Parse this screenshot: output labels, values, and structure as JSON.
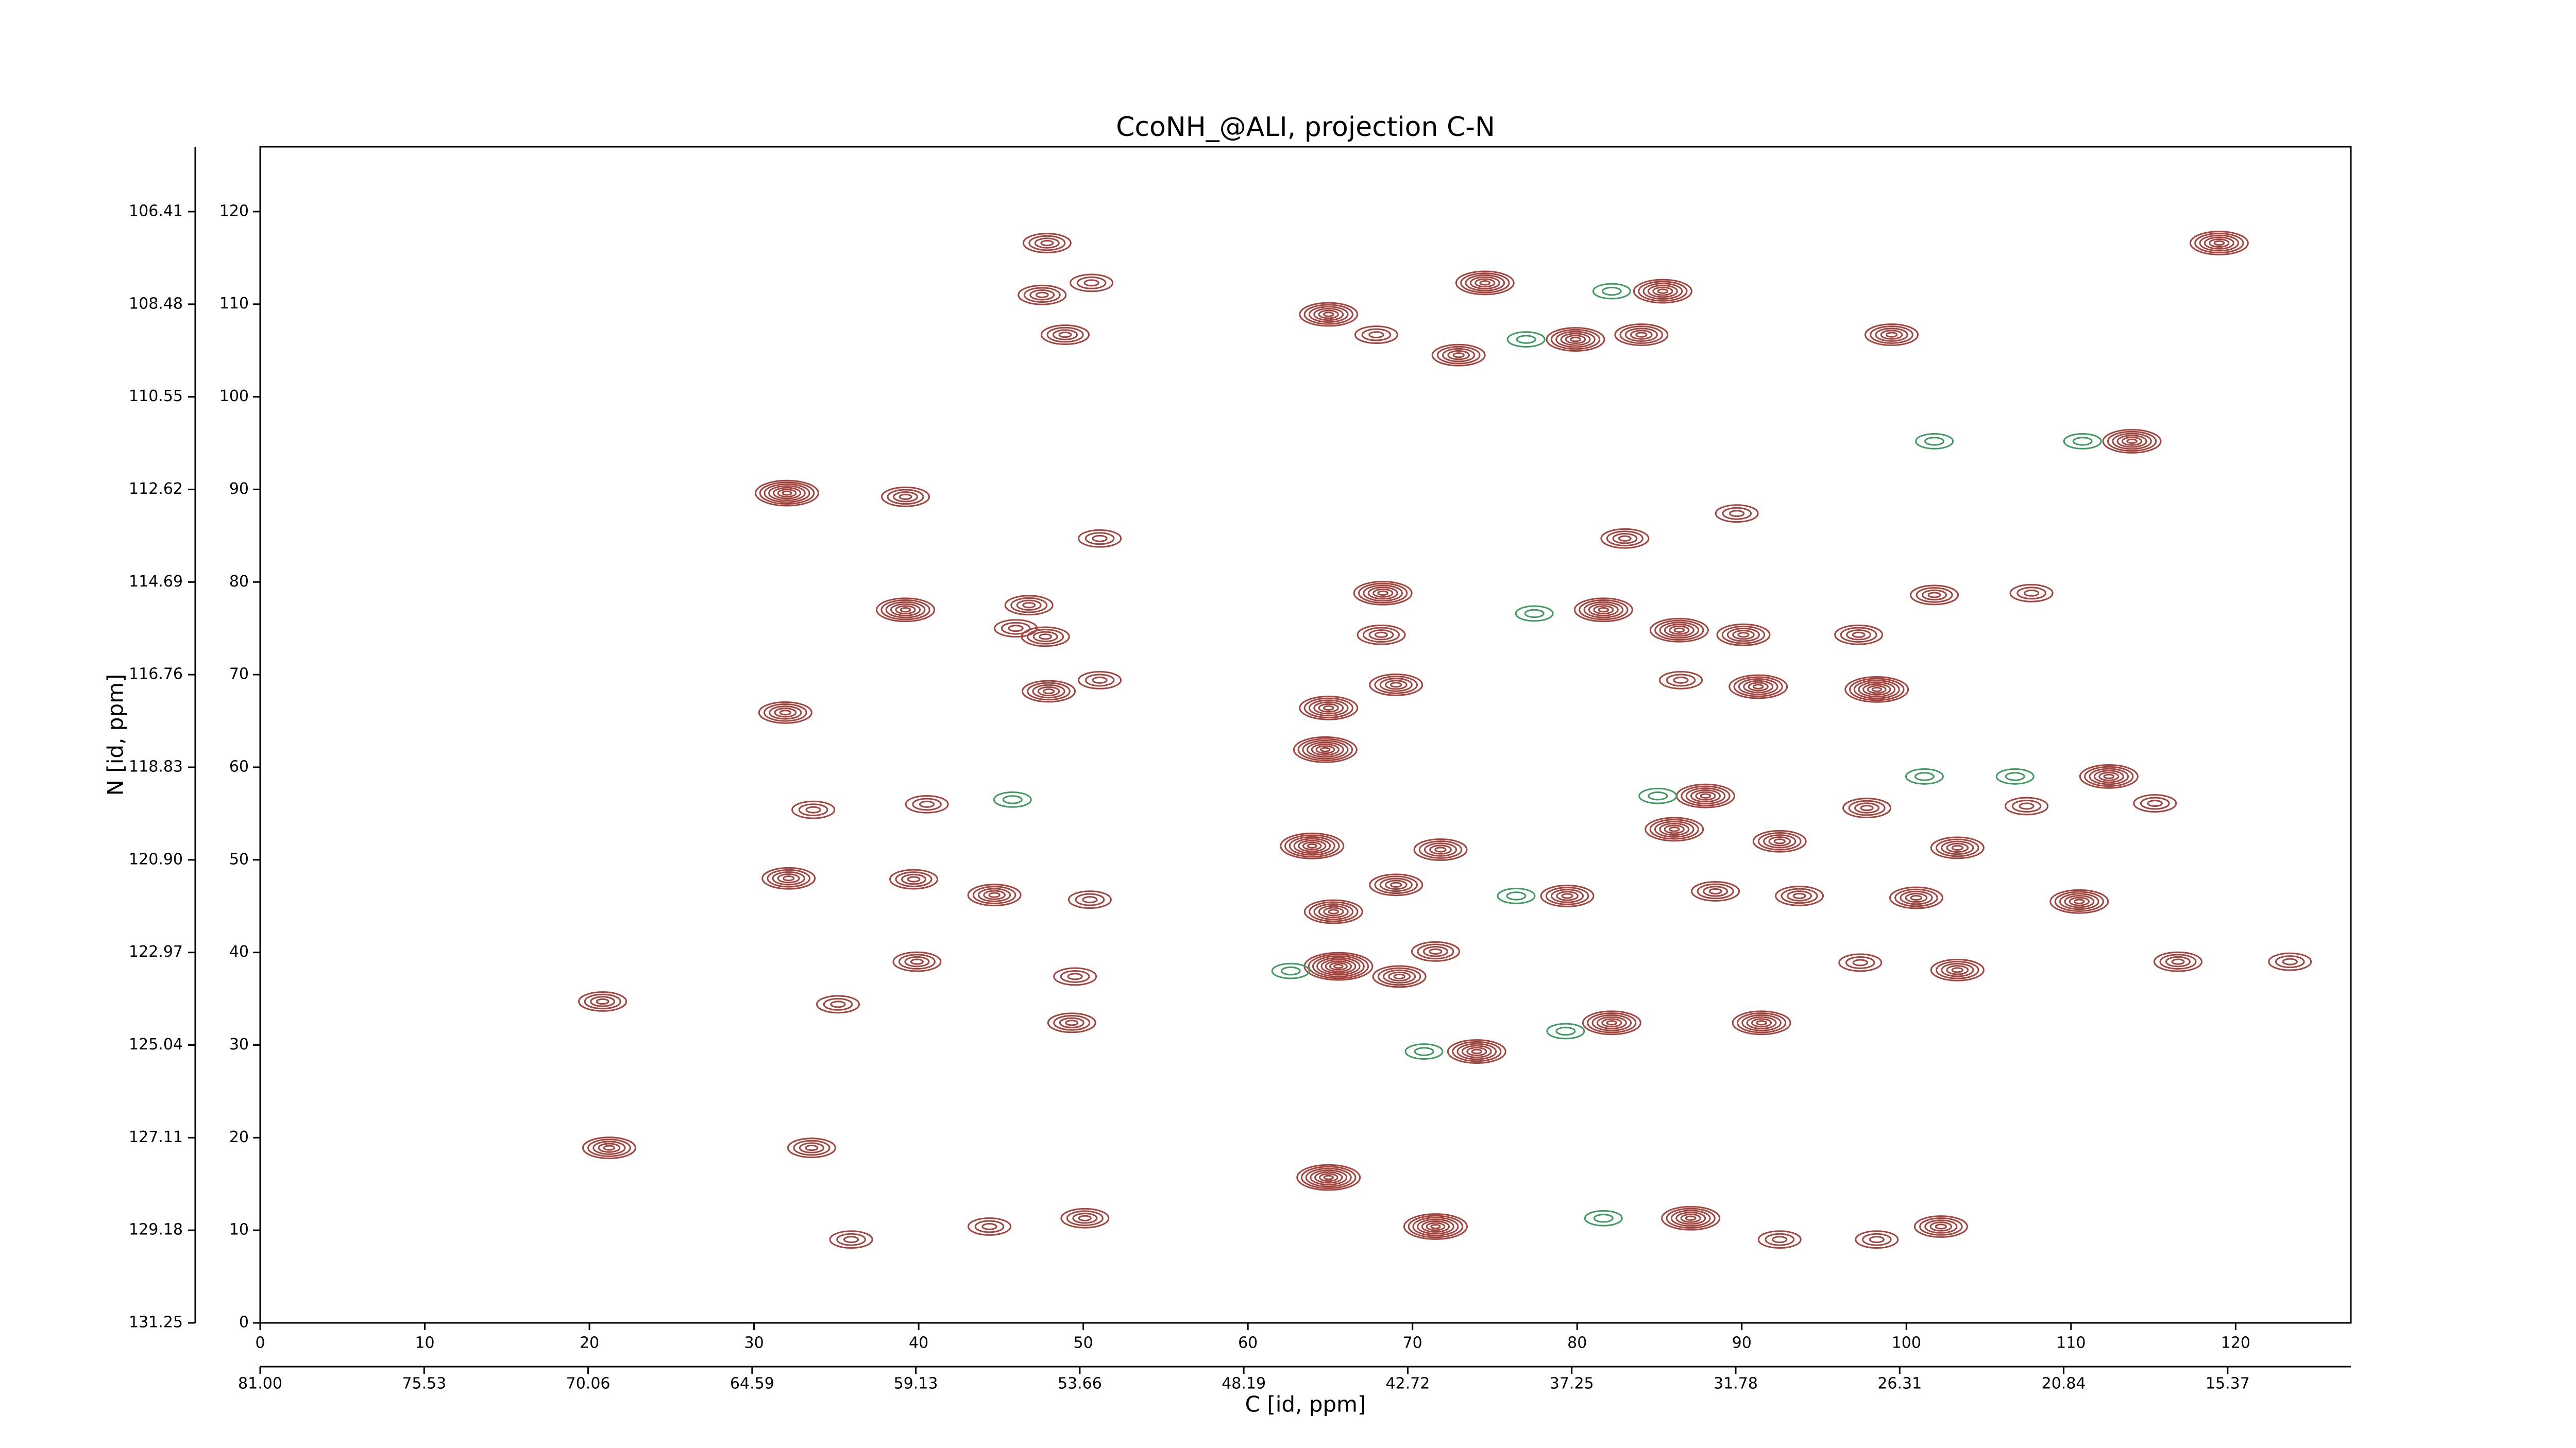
{
  "chart_data": {
    "type": "contour",
    "title": "CcoNH_@ALI, projection C-N",
    "x_label": "C [id, ppm]",
    "y_label": "N [id, ppm]",
    "xlim": [
      0,
      127
    ],
    "ylim": [
      0,
      127
    ],
    "xticks": [
      0,
      10,
      20,
      30,
      40,
      50,
      60,
      70,
      80,
      90,
      100,
      110,
      120
    ],
    "yticks": [
      0,
      10,
      20,
      30,
      40,
      50,
      60,
      70,
      80,
      90,
      100,
      110,
      120
    ],
    "x2lim": [
      81.0,
      11.26
    ],
    "y2lim": [
      131.25,
      104.96
    ],
    "x2ticks": [
      {
        "value": 81.0,
        "label": "81.00"
      },
      75.53,
      70.06,
      64.59,
      59.13,
      53.66,
      48.19,
      42.72,
      37.25,
      31.78,
      26.31,
      20.84,
      15.37
    ],
    "y2ticks": [
      131.25,
      129.18,
      127.11,
      125.04,
      122.97,
      {
        "value": 120.9,
        "label": "120.90"
      },
      118.83,
      116.76,
      114.69,
      112.62,
      {
        "value": 110.55,
        "label": "110.55"
      },
      108.48,
      106.41
    ],
    "series": [
      {
        "color": "#a3443e",
        "x": [
          47.8,
          47.5,
          50.5,
          48.9,
          64.9,
          67.8,
          74.4,
          72.8,
          79.9,
          83.9,
          85.2,
          99.1,
          119.0,
          113.7,
          32.0,
          39.2,
          51.0,
          82.9,
          89.7,
          39.2,
          46.7,
          45.9,
          47.7,
          68.2,
          68.1,
          47.9,
          51.0,
          69.0,
          64.9,
          64.7,
          81.6,
          86.2,
          90.1,
          91.0,
          86.3,
          98.2,
          97.1,
          101.7,
          107.6,
          31.9,
          33.6,
          40.5,
          112.3,
          115.1,
          107.3,
          87.8,
          85.9,
          97.6,
          92.3,
          103.1,
          63.9,
          71.7,
          32.1,
          39.7,
          44.6,
          50.4,
          69.0,
          65.2,
          79.4,
          88.4,
          93.5,
          100.6,
          110.5,
          39.9,
          65.5,
          69.2,
          71.4,
          49.5,
          103.1,
          97.2,
          116.5,
          123.3,
          49.3,
          20.8,
          35.1,
          82.1,
          91.2,
          73.9,
          21.2,
          33.5,
          64.9,
          50.1,
          44.3,
          35.9,
          71.4,
          86.9,
          92.3,
          102.1,
          98.2
        ],
        "values": [
          116.6,
          111.0,
          112.3,
          106.7,
          108.9,
          106.7,
          112.3,
          104.5,
          106.2,
          106.7,
          111.4,
          106.7,
          116.6,
          95.2,
          89.6,
          89.2,
          84.7,
          84.7,
          87.4,
          77.0,
          77.5,
          75.0,
          74.1,
          78.8,
          74.3,
          68.2,
          69.4,
          68.9,
          66.4,
          61.9,
          77.0,
          74.8,
          74.3,
          68.7,
          69.4,
          68.4,
          74.3,
          78.6,
          78.8,
          65.9,
          55.4,
          56.0,
          59.0,
          56.1,
          55.8,
          56.9,
          53.3,
          55.6,
          52.0,
          51.3,
          51.5,
          51.1,
          48.0,
          47.9,
          46.2,
          45.7,
          47.3,
          44.4,
          46.1,
          46.6,
          46.1,
          45.9,
          45.5,
          39.0,
          38.5,
          37.4,
          40.1,
          37.4,
          38.1,
          38.9,
          39.0,
          39.0,
          32.4,
          34.7,
          34.4,
          32.4,
          32.4,
          29.3,
          18.9,
          18.9,
          15.7,
          11.3,
          10.4,
          9.0,
          10.4,
          11.3,
          9.0,
          10.4,
          9.0
        ],
        "levels": [
          4,
          4,
          3,
          4,
          6,
          3,
          6,
          5,
          6,
          5,
          6,
          5,
          6,
          6,
          7,
          4,
          3,
          4,
          3,
          6,
          4,
          3,
          4,
          6,
          4,
          5,
          3,
          5,
          6,
          7,
          6,
          6,
          5,
          6,
          3,
          7,
          4,
          4,
          3,
          5,
          3,
          3,
          6,
          3,
          3,
          6,
          6,
          4,
          5,
          5,
          7,
          5,
          5,
          4,
          5,
          3,
          5,
          6,
          5,
          4,
          4,
          5,
          6,
          4,
          8,
          5,
          4,
          3,
          5,
          3,
          4,
          3,
          4,
          4,
          3,
          6,
          6,
          6,
          5,
          4,
          7,
          4,
          3,
          3,
          7,
          6,
          3,
          5,
          3
        ]
      },
      {
        "color": "#3f9a5f",
        "x": [
          82.1,
          76.9,
          101.7,
          110.7,
          77.4,
          45.7,
          84.9,
          62.6,
          70.7,
          81.6,
          106.6,
          101.1,
          76.3,
          79.3
        ],
        "values": [
          111.4,
          106.2,
          95.2,
          95.2,
          76.6,
          56.5,
          56.9,
          38.0,
          29.3,
          11.3,
          59.0,
          59.0,
          46.1,
          31.5
        ],
        "levels": [
          2,
          2,
          2,
          2,
          2,
          2,
          2,
          2,
          2,
          2,
          2,
          2,
          2,
          2
        ]
      }
    ]
  }
}
